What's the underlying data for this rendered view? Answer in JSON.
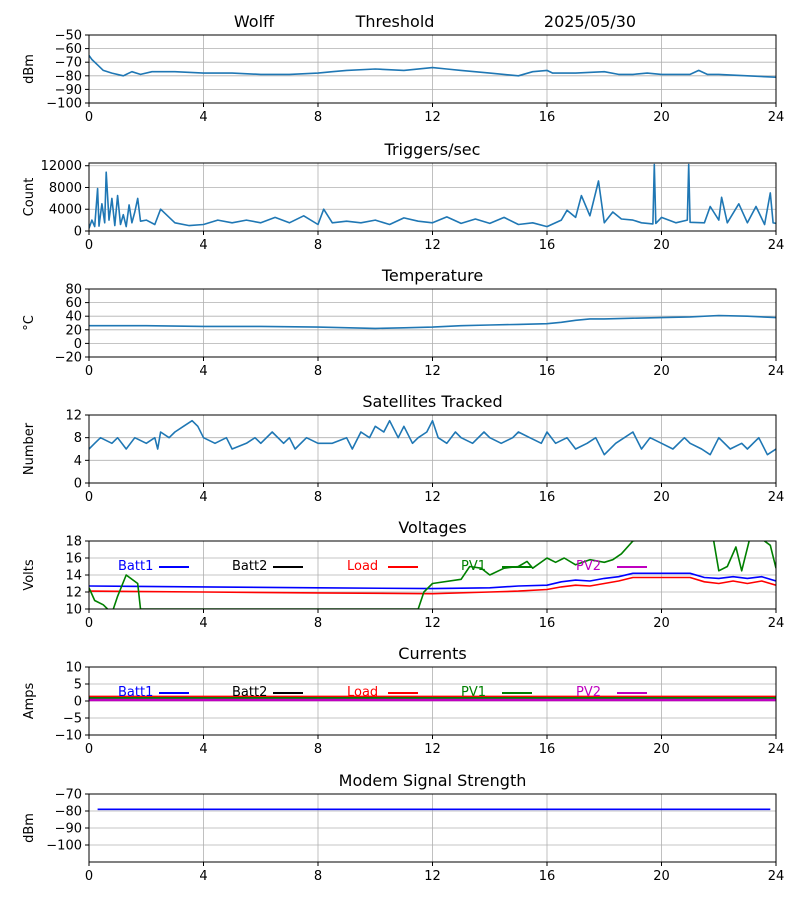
{
  "header": {
    "station": "Wolff",
    "threshold_label": "Threshold",
    "date": "2025/05/30"
  },
  "chart_data": [
    {
      "type": "line",
      "title": "",
      "ylabel": "dBm",
      "xlim": [
        0,
        24
      ],
      "ylim": [
        -100,
        -50
      ],
      "x_ticks": [
        0,
        4,
        8,
        12,
        16,
        20,
        24
      ],
      "y_ticks": [
        -100,
        -90,
        -80,
        -70,
        -60,
        -50
      ],
      "grid": true,
      "series": [
        {
          "color": "#1f77b4",
          "x": [
            0,
            0.1,
            0.3,
            0.5,
            0.8,
            1.2,
            1.5,
            1.8,
            2.2,
            3,
            4,
            5,
            6,
            7,
            8,
            8.5,
            9,
            10,
            11,
            12,
            12.5,
            13,
            14,
            15,
            15.5,
            16,
            16.2,
            17,
            18,
            18.5,
            19,
            19.5,
            20,
            21,
            21.3,
            21.6,
            22,
            23,
            24
          ],
          "y": [
            -65,
            -68,
            -72,
            -76,
            -78,
            -80,
            -77,
            -79,
            -77,
            -77,
            -78,
            -78,
            -79,
            -79,
            -78,
            -77,
            -76,
            -75,
            -76,
            -74,
            -75,
            -76,
            -78,
            -80,
            -77,
            -76,
            -78,
            -78,
            -77,
            -79,
            -79,
            -78,
            -79,
            -79,
            -76,
            -79,
            -79,
            -80,
            -81
          ]
        }
      ]
    },
    {
      "type": "line",
      "title": "Triggers/sec",
      "ylabel": "Count",
      "xlim": [
        0,
        24
      ],
      "ylim": [
        0,
        12500
      ],
      "x_ticks": [
        0,
        4,
        8,
        12,
        16,
        20,
        24
      ],
      "y_ticks": [
        0,
        4000,
        8000,
        12000
      ],
      "grid": true,
      "series": [
        {
          "color": "#1f77b4",
          "x": [
            0,
            0.1,
            0.2,
            0.3,
            0.35,
            0.45,
            0.55,
            0.6,
            0.7,
            0.8,
            0.9,
            1,
            1.1,
            1.2,
            1.3,
            1.4,
            1.5,
            1.6,
            1.7,
            1.8,
            2,
            2.3,
            2.5,
            3,
            3.5,
            4,
            4.5,
            5,
            5.5,
            6,
            6.5,
            7,
            7.5,
            8,
            8.2,
            8.5,
            9,
            9.5,
            10,
            10.5,
            11,
            11.5,
            12,
            12.5,
            13,
            13.5,
            14,
            14.5,
            15,
            15.5,
            16,
            16.5,
            16.7,
            17,
            17.2,
            17.5,
            17.8,
            18,
            18.3,
            18.6,
            19,
            19.3,
            19.7,
            19.75,
            19.8,
            20,
            20.5,
            20.9,
            20.95,
            21,
            21.5,
            21.7,
            22,
            22.1,
            22.3,
            22.7,
            23,
            23.3,
            23.6,
            23.8,
            23.9,
            24
          ],
          "y": [
            500,
            2000,
            800,
            7800,
            900,
            5000,
            1500,
            10800,
            2000,
            6000,
            1000,
            6500,
            1200,
            3000,
            800,
            4800,
            1500,
            3500,
            6000,
            1800,
            2000,
            1200,
            4000,
            1500,
            1000,
            1200,
            2000,
            1500,
            2000,
            1500,
            2500,
            1500,
            2800,
            1200,
            4000,
            1500,
            1800,
            1500,
            2000,
            1200,
            2400,
            1800,
            1500,
            2600,
            1400,
            2200,
            1400,
            2500,
            1200,
            1500,
            800,
            2000,
            3800,
            2500,
            6500,
            2800,
            9200,
            1500,
            3500,
            2200,
            2000,
            1500,
            1300,
            12200,
            1400,
            2500,
            1500,
            2000,
            12200,
            1600,
            1500,
            4500,
            2000,
            6200,
            1500,
            5000,
            1500,
            4500,
            1200,
            7000,
            1500,
            1400
          ]
        }
      ]
    },
    {
      "type": "line",
      "title": "Temperature",
      "ylabel": "°C",
      "xlim": [
        0,
        24
      ],
      "ylim": [
        -20,
        80
      ],
      "x_ticks": [
        0,
        4,
        8,
        12,
        16,
        20,
        24
      ],
      "y_ticks": [
        -20,
        0,
        20,
        40,
        60,
        80
      ],
      "grid": true,
      "series": [
        {
          "color": "#1f77b4",
          "x": [
            0,
            2,
            4,
            6,
            8,
            10,
            11,
            12,
            13,
            14,
            15,
            16,
            16.5,
            17,
            17.5,
            18,
            19,
            20,
            21,
            22,
            23,
            24
          ],
          "y": [
            26,
            26,
            25,
            25,
            24,
            22,
            23,
            24,
            26,
            27,
            28,
            29,
            31,
            34,
            36,
            36,
            37,
            38,
            39,
            41,
            40,
            38
          ]
        }
      ]
    },
    {
      "type": "line",
      "title": "Satellites Tracked",
      "ylabel": "Number",
      "xlim": [
        0,
        24
      ],
      "ylim": [
        0,
        12
      ],
      "x_ticks": [
        0,
        4,
        8,
        12,
        16,
        20,
        24
      ],
      "y_ticks": [
        0,
        4,
        8,
        12
      ],
      "grid": true,
      "series": [
        {
          "color": "#1f77b4",
          "x": [
            0,
            0.2,
            0.4,
            0.8,
            1,
            1.3,
            1.6,
            2,
            2.3,
            2.4,
            2.5,
            2.8,
            3,
            3.3,
            3.6,
            3.8,
            4,
            4.4,
            4.8,
            5,
            5.5,
            5.8,
            6,
            6.4,
            6.8,
            7,
            7.2,
            7.6,
            8,
            8.5,
            9,
            9.2,
            9.5,
            9.8,
            10,
            10.3,
            10.5,
            10.8,
            11,
            11.3,
            11.5,
            11.8,
            12,
            12.2,
            12.5,
            12.8,
            13,
            13.4,
            13.8,
            14,
            14.4,
            14.8,
            15,
            15.4,
            15.8,
            16,
            16.3,
            16.7,
            17,
            17.4,
            17.7,
            18,
            18.4,
            18.7,
            19,
            19.3,
            19.6,
            20,
            20.4,
            20.8,
            21,
            21.4,
            21.7,
            22,
            22.4,
            22.8,
            23,
            23.4,
            23.7,
            24
          ],
          "y": [
            6,
            7,
            8,
            7,
            8,
            6,
            8,
            7,
            8,
            6,
            9,
            8,
            9,
            10,
            11,
            10,
            8,
            7,
            8,
            6,
            7,
            8,
            7,
            9,
            7,
            8,
            6,
            8,
            7,
            7,
            8,
            6,
            9,
            8,
            10,
            9,
            11,
            8,
            10,
            7,
            8,
            9,
            11,
            8,
            7,
            9,
            8,
            7,
            9,
            8,
            7,
            8,
            9,
            8,
            7,
            9,
            7,
            8,
            6,
            7,
            8,
            5,
            7,
            8,
            9,
            6,
            8,
            7,
            6,
            8,
            7,
            6,
            5,
            8,
            6,
            7,
            6,
            8,
            5,
            6
          ]
        }
      ]
    },
    {
      "type": "line",
      "title": "Voltages",
      "ylabel": "Volts",
      "xlim": [
        0,
        24
      ],
      "ylim": [
        10,
        18
      ],
      "x_ticks": [
        0,
        4,
        8,
        12,
        16,
        20,
        24
      ],
      "y_ticks": [
        10,
        12,
        14,
        16,
        18
      ],
      "grid": true,
      "legend_position": "top",
      "series": [
        {
          "name": "Batt1",
          "color": "#0000ff",
          "x": [
            0,
            4,
            8,
            12,
            14,
            15,
            16,
            16.5,
            17,
            17.5,
            18,
            18.5,
            19,
            20,
            21,
            21.5,
            22,
            22.5,
            23,
            23.5,
            24
          ],
          "y": [
            12.7,
            12.6,
            12.5,
            12.4,
            12.5,
            12.7,
            12.8,
            13.2,
            13.4,
            13.3,
            13.6,
            13.8,
            14.2,
            14.2,
            14.2,
            13.7,
            13.6,
            13.8,
            13.6,
            13.8,
            13.3
          ]
        },
        {
          "name": "Batt2",
          "color": "#000000",
          "x": [],
          "y": []
        },
        {
          "name": "Load",
          "color": "#ff0000",
          "x": [
            0,
            4,
            8,
            12,
            14,
            15,
            16,
            16.5,
            17,
            17.5,
            18,
            18.5,
            19,
            20,
            21,
            21.5,
            22,
            22.5,
            23,
            23.5,
            24
          ],
          "y": [
            12.1,
            12.0,
            11.9,
            11.8,
            12.0,
            12.1,
            12.3,
            12.6,
            12.8,
            12.7,
            13.0,
            13.3,
            13.7,
            13.7,
            13.7,
            13.2,
            13.0,
            13.3,
            13.0,
            13.3,
            12.8
          ]
        },
        {
          "name": "PV1",
          "color": "#008000",
          "x": [
            0,
            0.2,
            0.5,
            0.8,
            1.0,
            1.3,
            1.7,
            1.8,
            11.5,
            11.7,
            12.0,
            13.0,
            13.3,
            13.7,
            14.0,
            14.5,
            15.0,
            15.3,
            15.5,
            16.0,
            16.3,
            16.6,
            17.0,
            17.5,
            18.0,
            18.3,
            18.6,
            19.0,
            19.4,
            21.8,
            22.0,
            22.3,
            22.6,
            22.8,
            23.1,
            23.4,
            23.8,
            24.0
          ],
          "y": [
            12.5,
            11.0,
            10.5,
            9.5,
            11.5,
            14.0,
            13.0,
            10.0,
            10.0,
            12.0,
            13.0,
            13.5,
            15.0,
            14.8,
            14.0,
            14.8,
            15.0,
            15.6,
            14.8,
            16.0,
            15.5,
            16.0,
            15.2,
            15.8,
            15.5,
            15.8,
            16.5,
            18.0,
            18.2,
            18.5,
            14.5,
            15.0,
            17.3,
            14.5,
            18.5,
            18.5,
            17.5,
            14.8
          ]
        },
        {
          "name": "PV2",
          "color": "#bf00bf",
          "x": [],
          "y": []
        }
      ]
    },
    {
      "type": "line",
      "title": "Currents",
      "ylabel": "Amps",
      "xlim": [
        0,
        24
      ],
      "ylim": [
        -10,
        10
      ],
      "x_ticks": [
        0,
        4,
        8,
        12,
        16,
        20,
        24
      ],
      "y_ticks": [
        -10,
        -5,
        0,
        5,
        10
      ],
      "grid": true,
      "legend_position": "top",
      "series": [
        {
          "name": "Batt1",
          "color": "#0000ff",
          "x": [
            0,
            24
          ],
          "y": [
            0.5,
            0.5
          ]
        },
        {
          "name": "Batt2",
          "color": "#000000",
          "x": [],
          "y": []
        },
        {
          "name": "Load",
          "color": "#ff0000",
          "x": [
            0,
            24
          ],
          "y": [
            1.2,
            1.2
          ]
        },
        {
          "name": "PV1",
          "color": "#008000",
          "x": [
            0,
            24
          ],
          "y": [
            0.8,
            0.8
          ]
        },
        {
          "name": "PV2",
          "color": "#bf00bf",
          "x": [
            0,
            24
          ],
          "y": [
            0.3,
            0.3
          ]
        }
      ]
    },
    {
      "type": "line",
      "title": "Modem Signal Strength",
      "ylabel": "dBm",
      "xlim": [
        0,
        24
      ],
      "ylim": [
        -110,
        -70
      ],
      "x_ticks": [
        0,
        4,
        8,
        12,
        16,
        20,
        24
      ],
      "y_ticks": [
        -100,
        -90,
        -80,
        -70
      ],
      "grid": true,
      "series": [
        {
          "color": "#0000ff",
          "x": [
            0.3,
            23.8
          ],
          "y": [
            -79,
            -79
          ]
        }
      ]
    }
  ]
}
